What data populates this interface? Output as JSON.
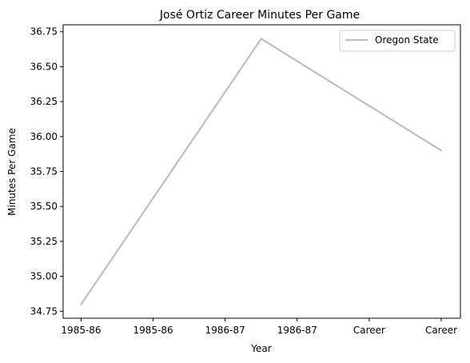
{
  "chart_data": {
    "type": "line",
    "title": "José Ortiz  Career Minutes Per Game",
    "xlabel": "Year",
    "ylabel": "Minutes Per Game",
    "x_tick_labels": [
      "1985-86",
      "1985-86",
      "1986-87",
      "1986-87",
      "Career",
      "Career"
    ],
    "y_ticks": [
      34.75,
      35.0,
      35.25,
      35.5,
      35.75,
      36.0,
      36.25,
      36.5,
      36.75
    ],
    "y_tick_labels": [
      "34.75",
      "35.00",
      "35.25",
      "35.50",
      "35.75",
      "36.00",
      "36.25",
      "36.50",
      "36.75"
    ],
    "ylim": [
      34.7,
      36.8
    ],
    "grid": false,
    "legend_position": "top-right",
    "series": [
      {
        "name": "Oregon State",
        "color": "#bfbfbf",
        "x": [
          0,
          2.5,
          5
        ],
        "values": [
          34.8,
          36.7,
          35.9
        ]
      }
    ]
  }
}
